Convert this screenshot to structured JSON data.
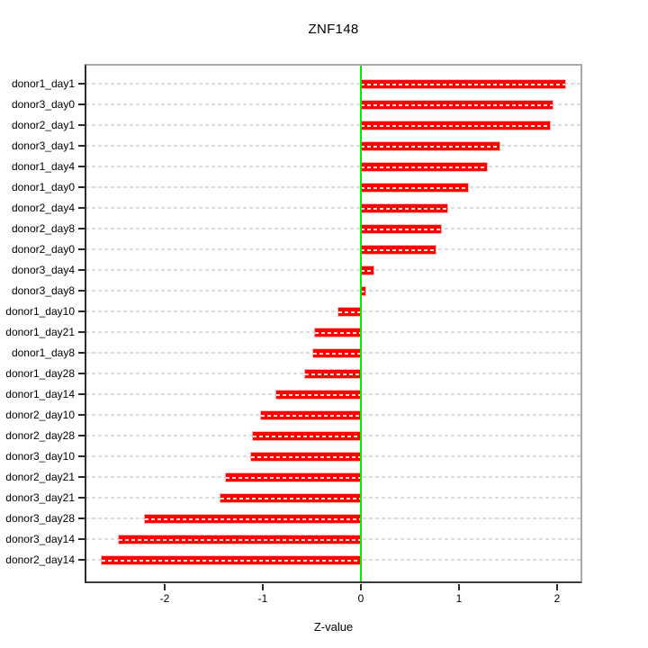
{
  "title": "ZNF148",
  "x_axis_label": "Z-value",
  "chart_data": {
    "type": "bar",
    "orientation": "horizontal",
    "title": "ZNF148",
    "xlabel": "Z-value",
    "ylabel": "",
    "xlim": [
      -2.82,
      2.26
    ],
    "x_ticks": [
      -2,
      -1,
      0,
      1,
      2
    ],
    "grid": "horizontal dashed line per category",
    "legend": "none",
    "bar_color": "#ff0000",
    "zero_line_color": "#00ef00",
    "grid_color": "#dcdcdc",
    "categories": [
      "donor1_day1",
      "donor3_day0",
      "donor2_day1",
      "donor3_day1",
      "donor1_day4",
      "donor1_day0",
      "donor2_day4",
      "donor2_day8",
      "donor2_day0",
      "donor3_day4",
      "donor3_day8",
      "donor1_day10",
      "donor1_day21",
      "donor1_day8",
      "donor1_day28",
      "donor1_day14",
      "donor2_day10",
      "donor2_day28",
      "donor3_day10",
      "donor2_day21",
      "donor3_day21",
      "donor3_day28",
      "donor3_day14",
      "donor2_day14"
    ],
    "values": [
      2.08,
      1.95,
      1.93,
      1.41,
      1.28,
      1.09,
      0.88,
      0.82,
      0.76,
      0.13,
      0.05,
      -0.23,
      -0.47,
      -0.49,
      -0.57,
      -0.86,
      -1.02,
      -1.1,
      -1.12,
      -1.38,
      -1.43,
      -2.2,
      -2.47,
      -2.64
    ]
  }
}
